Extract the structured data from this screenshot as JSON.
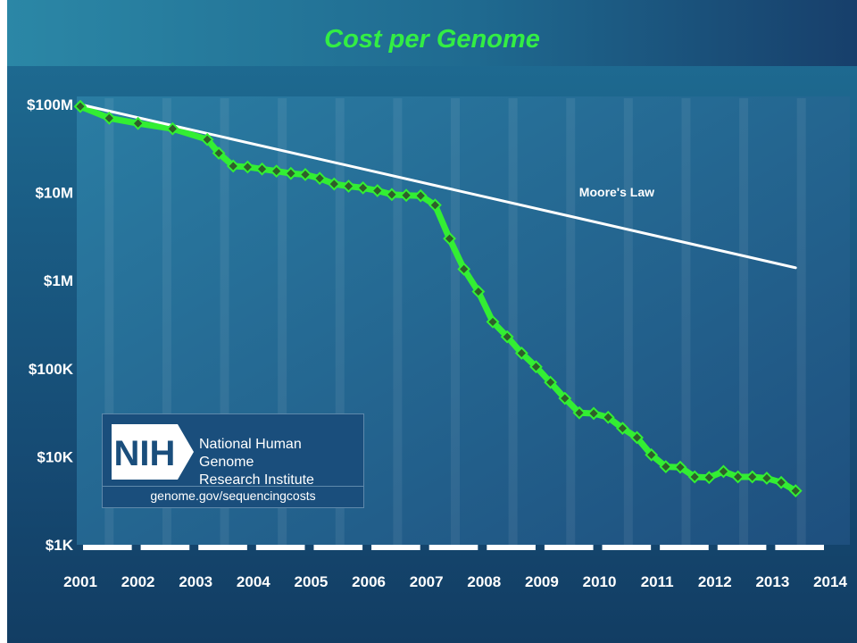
{
  "chart_data": {
    "type": "line",
    "title": "Cost per Genome",
    "y_scale": "log",
    "ylim": [
      1000,
      100000000
    ],
    "y_ticks": [
      {
        "value": 100000000,
        "label": "$100M"
      },
      {
        "value": 10000000,
        "label": "$10M"
      },
      {
        "value": 1000000,
        "label": "$1M"
      },
      {
        "value": 100000,
        "label": "$100K"
      },
      {
        "value": 10000,
        "label": "$10K"
      },
      {
        "value": 1000,
        "label": "$1K"
      }
    ],
    "xlim": [
      2001.0,
      2014.0
    ],
    "x_ticks": [
      "2001",
      "2002",
      "2003",
      "2004",
      "2005",
      "2006",
      "2007",
      "2008",
      "2009",
      "2010",
      "2011",
      "2012",
      "2013",
      "2014"
    ],
    "series": [
      {
        "name": "",
        "color": "#33ee33",
        "marker": "diamond",
        "points": [
          [
            2001.0,
            95000000
          ],
          [
            2001.5,
            70000000
          ],
          [
            2002.0,
            61000000
          ],
          [
            2002.6,
            53000000
          ],
          [
            2003.2,
            40000000
          ],
          [
            2003.4,
            28000000
          ],
          [
            2003.65,
            20000000
          ],
          [
            2003.9,
            19500000
          ],
          [
            2004.15,
            18500000
          ],
          [
            2004.4,
            17500000
          ],
          [
            2004.65,
            16500000
          ],
          [
            2004.9,
            16000000
          ],
          [
            2005.15,
            14500000
          ],
          [
            2005.4,
            12500000
          ],
          [
            2005.65,
            11800000
          ],
          [
            2005.9,
            11300000
          ],
          [
            2006.15,
            10500000
          ],
          [
            2006.4,
            9500000
          ],
          [
            2006.65,
            9300000
          ],
          [
            2006.9,
            9200000
          ],
          [
            2007.15,
            7200000
          ],
          [
            2007.4,
            3000000
          ],
          [
            2007.65,
            1350000
          ],
          [
            2007.9,
            750000
          ],
          [
            2008.15,
            340000
          ],
          [
            2008.4,
            230000
          ],
          [
            2008.65,
            150000
          ],
          [
            2008.9,
            105000
          ],
          [
            2009.15,
            70000
          ],
          [
            2009.4,
            46000
          ],
          [
            2009.65,
            31500
          ],
          [
            2009.9,
            31000
          ],
          [
            2010.15,
            28000
          ],
          [
            2010.4,
            21000
          ],
          [
            2010.65,
            16500
          ],
          [
            2010.9,
            10500
          ],
          [
            2011.15,
            7700
          ],
          [
            2011.4,
            7600
          ],
          [
            2011.65,
            5900
          ],
          [
            2011.9,
            5800
          ],
          [
            2012.15,
            6800
          ],
          [
            2012.4,
            5900
          ],
          [
            2012.65,
            5900
          ],
          [
            2012.9,
            5700
          ],
          [
            2013.15,
            5100
          ],
          [
            2013.4,
            4100
          ]
        ]
      },
      {
        "name": "Moore's Law",
        "color": "#ffffff",
        "marker": "none",
        "points": [
          [
            2001.0,
            100000000
          ],
          [
            2013.4,
            1400000
          ]
        ]
      }
    ],
    "annotations": [
      {
        "text": "Moore's Law",
        "x": 2010.3,
        "y": 9000000
      }
    ],
    "grid": "alternating vertical bands"
  },
  "logo": {
    "mark": "NIH",
    "org_line1": "National Human Genome",
    "org_line2": "Research Institute",
    "url": "genome.gov/sequencingcosts"
  }
}
